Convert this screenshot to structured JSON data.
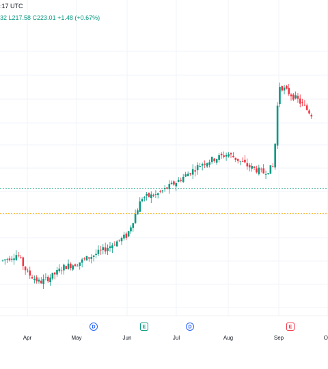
{
  "header": {
    "time_fragment": ":17 UTC",
    "ohlc_fragment": "32  L217.58  C223.01  +1.48 (+0.67%)"
  },
  "colors": {
    "up": "#089981",
    "down": "#f23645",
    "grid": "#f0f3fa",
    "price_line_green": "#089981",
    "price_line_orange": "#f7a600",
    "marker_blue": "#2962ff",
    "marker_green": "#089981",
    "marker_red": "#f23645"
  },
  "chart_data": {
    "type": "candlestick",
    "x_axis_labels": [
      "Apr",
      "May",
      "Jun",
      "Jul",
      "Aug",
      "Sep",
      "O"
    ],
    "price_lines": [
      {
        "y": 198.0,
        "color": "green"
      },
      {
        "y": 190.0,
        "color": "orange"
      }
    ],
    "events": [
      {
        "label": "D",
        "type": "dividend",
        "color": "blue",
        "date_index": 1
      },
      {
        "label": "E",
        "type": "earnings",
        "color": "green",
        "date_index": 2
      },
      {
        "label": "D",
        "type": "dividend",
        "color": "blue",
        "date_index": 3
      },
      {
        "label": "E",
        "type": "earnings",
        "color": "red",
        "date_index": 5
      }
    ],
    "y_range": [
      160,
      245
    ],
    "trend": [
      {
        "m": -0.5,
        "v": 175
      },
      {
        "m": -0.2,
        "v": 177
      },
      {
        "m": 0.0,
        "v": 171
      },
      {
        "m": 0.25,
        "v": 168
      },
      {
        "m": 0.5,
        "v": 170
      },
      {
        "m": 0.75,
        "v": 173
      },
      {
        "m": 1.0,
        "v": 174
      },
      {
        "m": 1.5,
        "v": 178
      },
      {
        "m": 2.0,
        "v": 183
      },
      {
        "m": 2.3,
        "v": 195
      },
      {
        "m": 2.6,
        "v": 196
      },
      {
        "m": 3.0,
        "v": 200
      },
      {
        "m": 3.5,
        "v": 206
      },
      {
        "m": 4.0,
        "v": 209
      },
      {
        "m": 4.4,
        "v": 205
      },
      {
        "m": 4.7,
        "v": 203
      },
      {
        "m": 4.9,
        "v": 205
      },
      {
        "m": 5.0,
        "v": 231
      },
      {
        "m": 5.4,
        "v": 226
      },
      {
        "m": 5.7,
        "v": 221
      }
    ]
  }
}
